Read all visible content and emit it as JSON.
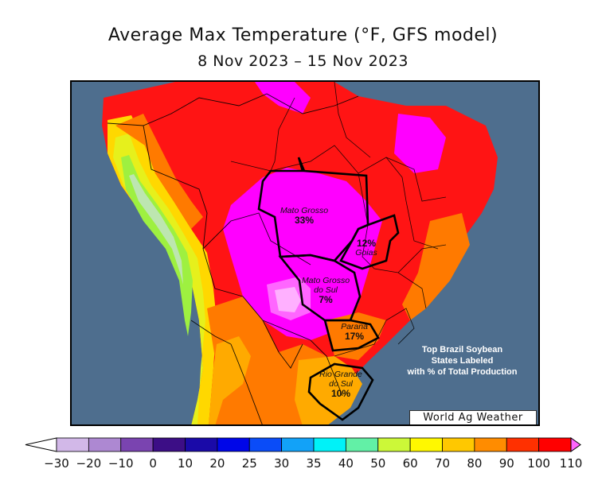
{
  "title": "Average Max Temperature (°F, GFS model)",
  "subtitle": "8 Nov 2023 – 15 Nov 2023",
  "credit": "World Ag Weather",
  "note": {
    "line1": "Top Brazil Soybean",
    "line2": "States Labeled",
    "line3": "with % of Total Production"
  },
  "states": [
    {
      "key": "mato-grosso",
      "name": "Mato Grosso",
      "pct": "33%"
    },
    {
      "key": "goias",
      "name": "Goias",
      "pct": "12%"
    },
    {
      "key": "mato-grosso-do-sul",
      "name_line1": "Mato Grosso",
      "name_line2": "do Sul",
      "pct": "7%"
    },
    {
      "key": "parana",
      "name": "Parana",
      "pct": "17%"
    },
    {
      "key": "rio-grande-do-sul",
      "name_line1": "Rio Grande",
      "name_line2": "do Sul",
      "pct": "10%"
    }
  ],
  "colorbar": {
    "ticks": [
      "-30",
      "-20",
      "-10",
      "0",
      "10",
      "20",
      "25",
      "30",
      "35",
      "40",
      "50",
      "60",
      "70",
      "80",
      "90",
      "100",
      "110"
    ],
    "bins": [
      {
        "color": "#d2b8e8"
      },
      {
        "color": "#ad88d2"
      },
      {
        "color": "#7a44b0"
      },
      {
        "color": "#3c0e86"
      },
      {
        "color": "#1a0aa8"
      },
      {
        "color": "#0006e8"
      },
      {
        "color": "#0a4cf8"
      },
      {
        "color": "#12a2f8"
      },
      {
        "color": "#00f2f8"
      },
      {
        "color": "#62f0a6"
      },
      {
        "color": "#ccf838"
      },
      {
        "color": "#fff800"
      },
      {
        "color": "#ffc800"
      },
      {
        "color": "#ff8c00"
      },
      {
        "color": "#ff3000"
      },
      {
        "color": "#ff0000"
      }
    ],
    "low_color": "#ffffff",
    "high_color": "#ff66ff"
  },
  "colors": {
    "ocean": "#4e6e8e",
    "t110": "#ff00ff",
    "t100": "#ff0040",
    "t90": "#ff1414",
    "t80": "#ff7a00",
    "t70": "#ffaa00",
    "t60": "#ffd800",
    "t50": "#e6f01c",
    "t40": "#9ef040",
    "cool": "#bde6b0",
    "hot_pink": "#ff66ff",
    "pale": "#ffb0ff"
  }
}
